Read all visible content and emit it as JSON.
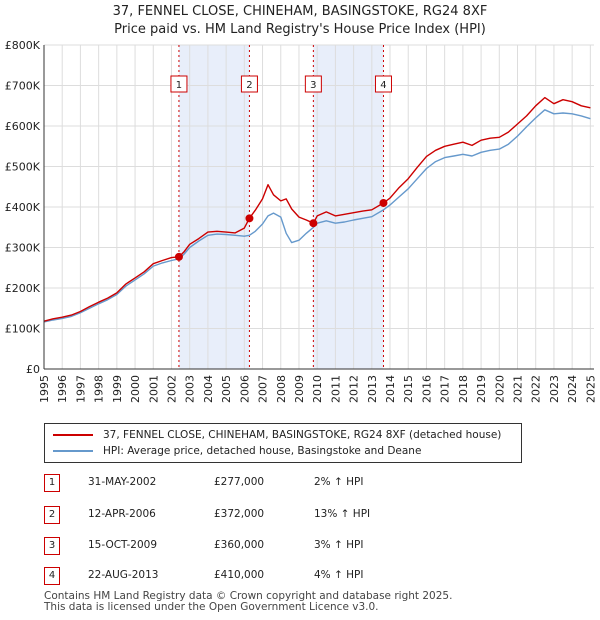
{
  "title_line1": "37, FENNEL CLOSE, CHINEHAM, BASINGSTOKE, RG24 8XF",
  "title_line2": "Price paid vs. HM Land Registry's House Price Index (HPI)",
  "colors": {
    "property": "#cc0000",
    "hpi": "#6699cc",
    "shade": "#e8eefa",
    "grid": "#dddddd"
  },
  "legend": {
    "property": "37, FENNEL CLOSE, CHINEHAM, BASINGSTOKE, RG24 8XF (detached house)",
    "hpi": "HPI: Average price, detached house, Basingstoke and Deane"
  },
  "sales": [
    {
      "num": "1",
      "date": "31-MAY-2002",
      "price": "£277,000",
      "hpi": "2% ↑ HPI"
    },
    {
      "num": "2",
      "date": "12-APR-2006",
      "price": "£372,000",
      "hpi": "13% ↑ HPI"
    },
    {
      "num": "3",
      "date": "15-OCT-2009",
      "price": "£360,000",
      "hpi": "3% ↑ HPI"
    },
    {
      "num": "4",
      "date": "22-AUG-2013",
      "price": "£410,000",
      "hpi": "4% ↑ HPI"
    }
  ],
  "footer": {
    "line1": "Contains HM Land Registry data © Crown copyright and database right 2025.",
    "line2": "This data is licensed under the Open Government Licence v3.0."
  },
  "chart_data": {
    "type": "line",
    "title": "37, FENNEL CLOSE, CHINEHAM, BASINGSTOKE, RG24 8XF — Price paid vs. HM Land Registry's House Price Index (HPI)",
    "xlabel": "",
    "ylabel": "",
    "xlim": [
      1995,
      2025.2
    ],
    "ylim": [
      0,
      800000
    ],
    "x_ticks": [
      1995,
      1996,
      1997,
      1998,
      1999,
      2000,
      2001,
      2002,
      2003,
      2004,
      2005,
      2006,
      2007,
      2008,
      2009,
      2010,
      2011,
      2012,
      2013,
      2014,
      2015,
      2016,
      2017,
      2018,
      2019,
      2020,
      2021,
      2022,
      2023,
      2024,
      2025
    ],
    "y_ticks": [
      0,
      100000,
      200000,
      300000,
      400000,
      500000,
      600000,
      700000,
      800000
    ],
    "y_tick_labels": [
      "£0",
      "£100K",
      "£200K",
      "£300K",
      "£400K",
      "£500K",
      "£600K",
      "£700K",
      "£800K"
    ],
    "grid": true,
    "shaded_ranges": [
      [
        2002.41,
        2006.28
      ],
      [
        2009.79,
        2013.64
      ]
    ],
    "series": [
      {
        "name": "37, FENNEL CLOSE, CHINEHAM, BASINGSTOKE, RG24 8XF (detached house)",
        "x": [
          1995,
          1995.5,
          1996,
          1996.5,
          1997,
          1997.5,
          1998,
          1998.5,
          1999,
          1999.5,
          2000,
          2000.5,
          2001,
          2001.5,
          2002,
          2002.41,
          2002.7,
          2003,
          2003.5,
          2004,
          2004.5,
          2005,
          2005.5,
          2006,
          2006.28,
          2006.6,
          2007,
          2007.3,
          2007.6,
          2008,
          2008.3,
          2008.6,
          2009,
          2009.4,
          2009.79,
          2010,
          2010.5,
          2011,
          2011.5,
          2012,
          2012.5,
          2013,
          2013.64,
          2014,
          2014.5,
          2015,
          2015.5,
          2016,
          2016.5,
          2017,
          2017.5,
          2018,
          2018.5,
          2019,
          2019.5,
          2020,
          2020.5,
          2021,
          2021.5,
          2022,
          2022.5,
          2023,
          2023.5,
          2024,
          2024.5,
          2025
        ],
        "y": [
          118000,
          124000,
          128000,
          133000,
          142000,
          154000,
          165000,
          175000,
          188000,
          210000,
          225000,
          240000,
          260000,
          268000,
          275000,
          277000,
          290000,
          308000,
          322000,
          338000,
          340000,
          338000,
          336000,
          348000,
          372000,
          392000,
          420000,
          455000,
          430000,
          415000,
          420000,
          395000,
          375000,
          368000,
          360000,
          378000,
          388000,
          378000,
          382000,
          386000,
          390000,
          393000,
          410000,
          422000,
          448000,
          470000,
          498000,
          525000,
          540000,
          550000,
          555000,
          560000,
          552000,
          565000,
          570000,
          572000,
          585000,
          605000,
          625000,
          650000,
          670000,
          655000,
          665000,
          660000,
          650000,
          645000
        ]
      },
      {
        "name": "HPI: Average price, detached house, Basingstoke and Deane",
        "x": [
          1995,
          1995.5,
          1996,
          1996.5,
          1997,
          1997.5,
          1998,
          1998.5,
          1999,
          1999.5,
          2000,
          2000.5,
          2001,
          2001.5,
          2002,
          2002.41,
          2002.7,
          2003,
          2003.5,
          2004,
          2004.5,
          2005,
          2005.5,
          2006,
          2006.28,
          2006.6,
          2007,
          2007.3,
          2007.6,
          2008,
          2008.3,
          2008.6,
          2009,
          2009.4,
          2009.79,
          2010,
          2010.5,
          2011,
          2011.5,
          2012,
          2012.5,
          2013,
          2013.64,
          2014,
          2014.5,
          2015,
          2015.5,
          2016,
          2016.5,
          2017,
          2017.5,
          2018,
          2018.5,
          2019,
          2019.5,
          2020,
          2020.5,
          2021,
          2021.5,
          2022,
          2022.5,
          2023,
          2023.5,
          2024,
          2024.5,
          2025
        ],
        "y": [
          116000,
          121000,
          125000,
          130000,
          139000,
          150000,
          161000,
          171000,
          184000,
          205000,
          220000,
          235000,
          254000,
          262000,
          268000,
          272000,
          284000,
          300000,
          316000,
          330000,
          333000,
          332000,
          330000,
          328000,
          330000,
          340000,
          358000,
          378000,
          385000,
          375000,
          335000,
          312000,
          318000,
          335000,
          350000,
          360000,
          366000,
          360000,
          363000,
          368000,
          372000,
          376000,
          393000,
          405000,
          425000,
          445000,
          470000,
          495000,
          512000,
          522000,
          526000,
          530000,
          526000,
          535000,
          540000,
          543000,
          555000,
          575000,
          598000,
          620000,
          640000,
          630000,
          632000,
          630000,
          625000,
          618000
        ]
      }
    ],
    "sale_markers": [
      {
        "label": "1",
        "x": 2002.41,
        "y": 277000
      },
      {
        "label": "2",
        "x": 2006.28,
        "y": 372000
      },
      {
        "label": "3",
        "x": 2009.79,
        "y": 360000
      },
      {
        "label": "4",
        "x": 2013.64,
        "y": 410000
      }
    ]
  }
}
